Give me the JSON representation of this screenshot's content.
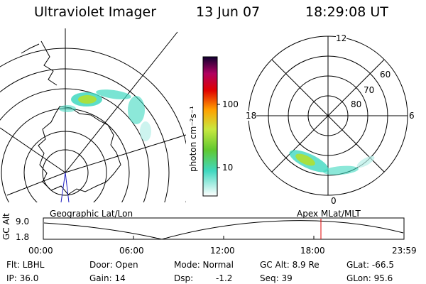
{
  "header": {
    "title": "Ultraviolet Imager",
    "date": "13 Jun 07",
    "time": "18:29:08 UT"
  },
  "colorbar": {
    "unit_label": "photon cm⁻²s⁻¹",
    "ticks": [
      "100",
      "10"
    ]
  },
  "polar": {
    "lat_labels": [
      "80",
      "70",
      "60"
    ],
    "mlt_labels": [
      "12",
      "18",
      "6",
      "0"
    ]
  },
  "timeline": {
    "left_label": "Geographic Lat/Lon",
    "right_label": "Apex MLat/MLT",
    "axis_title": "GC Alt",
    "y_ticks": [
      "9.0",
      "1.8"
    ],
    "x_ticks": [
      "00:00",
      "06:00",
      "12:00",
      "18:00",
      "23:59"
    ],
    "marker_time": "18:29"
  },
  "info": {
    "flt": "Flt: LBHL",
    "ip": "IP: 36.0",
    "door": "Door: Open",
    "gain": "Gain: 14",
    "mode": "Mode: Normal",
    "dsp_label": "Dsp:",
    "dsp_value": "-1.2",
    "gc_alt": "GC Alt: 8.9 Re",
    "seq": "Seq: 39",
    "glat": "GLat: -66.5",
    "glon": "GLon: 95.6"
  },
  "colors": {
    "marker": "#e00000",
    "auroral_low": "#40d8c0",
    "auroral_mid": "#a8e040",
    "auroral_high": "#60c830"
  }
}
